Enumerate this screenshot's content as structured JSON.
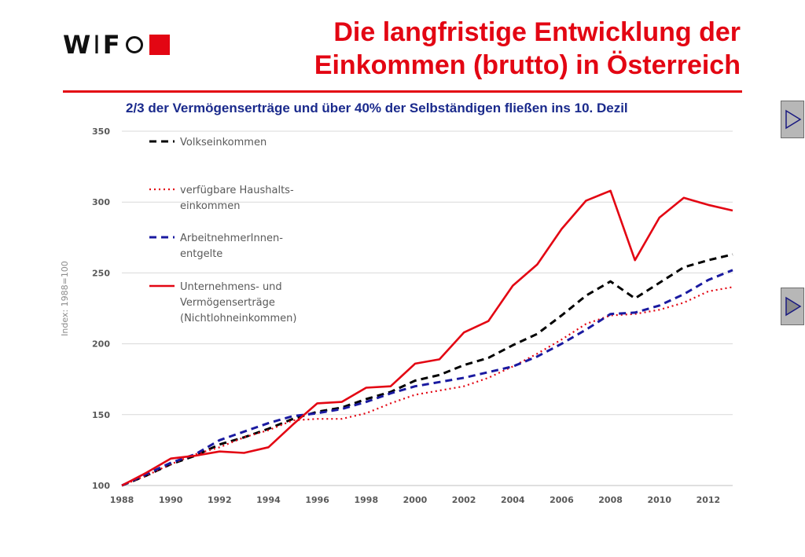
{
  "logo": {
    "part1": "W",
    "sep": "I",
    "part2": "F"
  },
  "header": {
    "title_line1": "Die langfristige Entwicklung der",
    "title_line2": "Einkommen (brutto) in Österreich"
  },
  "subtitle": "2/3 der Vermögenserträge und über 40% der Selbständigen fließen ins 10. Dezil",
  "chart_data": {
    "type": "line",
    "ylabel": "Index: 1988=100",
    "xlabel": "",
    "ylim": [
      100,
      350
    ],
    "xlim": [
      1988,
      2013
    ],
    "yticks": [
      100,
      150,
      200,
      250,
      300,
      350
    ],
    "xticks": [
      1988,
      1990,
      1992,
      1994,
      1996,
      1998,
      2000,
      2002,
      2004,
      2006,
      2008,
      2010,
      2012
    ],
    "grid": "horizontal",
    "legend_position": "top-left",
    "x": [
      1988,
      1989,
      1990,
      1991,
      1992,
      1993,
      1994,
      1995,
      1996,
      1997,
      1998,
      1999,
      2000,
      2001,
      2002,
      2003,
      2004,
      2005,
      2006,
      2007,
      2008,
      2009,
      2010,
      2011,
      2012,
      2013
    ],
    "series": [
      {
        "name": "Volkseinkommen",
        "color": "#000000",
        "style": "dashed",
        "legend": [
          "Volkseinkommen"
        ],
        "values": [
          100,
          107,
          115,
          121,
          129,
          134,
          140,
          147,
          152,
          155,
          161,
          166,
          174,
          178,
          185,
          190,
          199,
          207,
          220,
          234,
          244,
          232,
          243,
          254,
          259,
          263
        ]
      },
      {
        "name": "verfügbare Haushaltseinkommen",
        "color": "#e30613",
        "style": "dotted",
        "legend": [
          "verfügbare Haushalts-",
          "einkommen"
        ],
        "values": [
          100,
          107,
          115,
          122,
          127,
          134,
          139,
          146,
          147,
          147,
          151,
          158,
          164,
          167,
          170,
          176,
          184,
          193,
          203,
          214,
          220,
          221,
          224,
          229,
          237,
          240
        ]
      },
      {
        "name": "ArbeitnehmerInnenentgelte",
        "color": "#1a1aa0",
        "style": "dashed",
        "legend": [
          "ArbeitnehmerInnen-",
          "entgelte"
        ],
        "values": [
          100,
          108,
          116,
          122,
          132,
          138,
          144,
          149,
          151,
          154,
          159,
          165,
          170,
          173,
          176,
          180,
          184,
          191,
          200,
          210,
          221,
          222,
          227,
          235,
          245,
          252
        ]
      },
      {
        "name": "Unternehmens- und Vermögenserträge (Nichtlohneinkommen)",
        "color": "#e30613",
        "style": "solid",
        "legend": [
          "Unternehmens- und",
          "Vermögenserträge",
          "(Nichtlohneinkommen)"
        ],
        "values": [
          100,
          109,
          119,
          121,
          124,
          123,
          127,
          143,
          158,
          159,
          169,
          170,
          186,
          189,
          208,
          216,
          241,
          256,
          281,
          301,
          308,
          259,
          289,
          303,
          298,
          294
        ]
      }
    ]
  }
}
